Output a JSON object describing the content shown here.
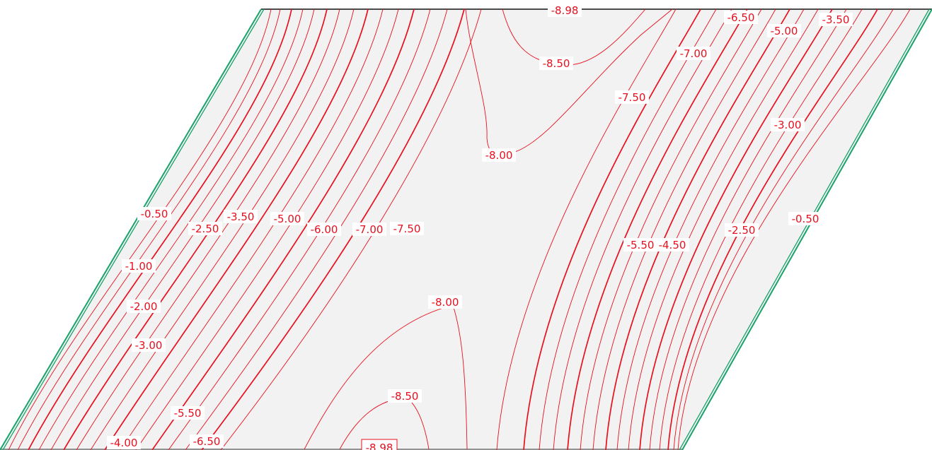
{
  "colors": {
    "contour": "#e8101e",
    "plate_fill": "#f2f2f2",
    "edge_green": "#1aa36b",
    "edge_dark": "#111111",
    "label_bg": "#ffffff"
  },
  "contour_labels": [
    {
      "text": "-8.98"
    },
    {
      "text": "-6.50"
    },
    {
      "text": "-5.00"
    },
    {
      "text": "-3.50"
    },
    {
      "text": "-8.50"
    },
    {
      "text": "-7.00"
    },
    {
      "text": "-7.50"
    },
    {
      "text": "-3.00"
    },
    {
      "text": "-8.00"
    },
    {
      "text": "-0.50"
    },
    {
      "text": "-2.50"
    },
    {
      "text": "-3.50"
    },
    {
      "text": "-5.00"
    },
    {
      "text": "-6.00"
    },
    {
      "text": "-7.00"
    },
    {
      "text": "-7.50"
    },
    {
      "text": "-5.50"
    },
    {
      "text": "-4.50"
    },
    {
      "text": "-2.50"
    },
    {
      "text": "-0.50"
    },
    {
      "text": "-1.00"
    },
    {
      "text": "-8.00"
    },
    {
      "text": "-2.00"
    },
    {
      "text": "-3.00"
    },
    {
      "text": "-8.50"
    },
    {
      "text": "-5.50"
    },
    {
      "text": "-4.00"
    },
    {
      "text": "-6.50"
    },
    {
      "text": "-8.98",
      "boxed": true
    }
  ]
}
